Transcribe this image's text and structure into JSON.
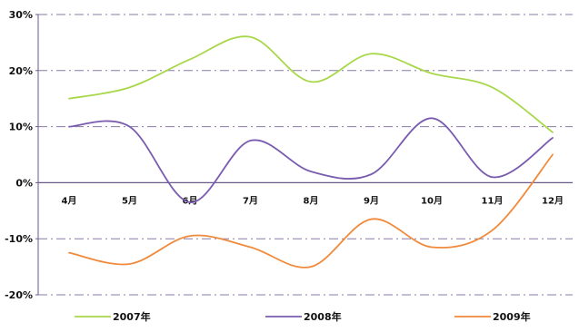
{
  "chart_data": {
    "type": "line",
    "categories": [
      "4月",
      "5月",
      "6月",
      "7月",
      "8月",
      "9月",
      "10月",
      "11月",
      "12月"
    ],
    "series": [
      {
        "name": "2007年",
        "color": "#a8d84a",
        "values": [
          15,
          17,
          22,
          26,
          18,
          23,
          19.5,
          17,
          9
        ]
      },
      {
        "name": "2008年",
        "color": "#7a5bb0",
        "values": [
          10,
          10,
          -3.5,
          7.5,
          2,
          1.5,
          11.5,
          1,
          8
        ]
      },
      {
        "name": "2009年",
        "color": "#f08a3c",
        "values": [
          -12.5,
          -14.5,
          -9.5,
          -11.5,
          -15,
          -6.5,
          -11.5,
          -8.5,
          5
        ]
      }
    ],
    "yticks": [
      "30%",
      "20%",
      "10%",
      "0%",
      "-10%",
      "-20%"
    ],
    "ytick_values": [
      30,
      20,
      10,
      0,
      -10,
      -20
    ],
    "ylim": [
      -20,
      30
    ],
    "grid": true,
    "legend_position": "bottom"
  }
}
